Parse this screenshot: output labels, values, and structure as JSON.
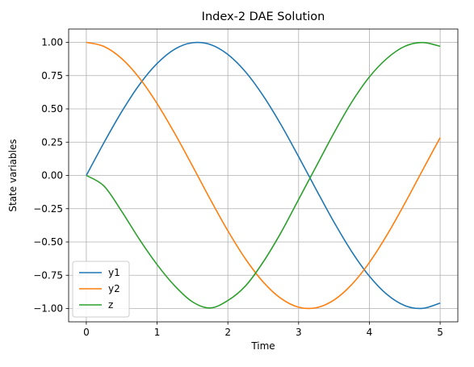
{
  "chart_data": {
    "type": "line",
    "title": "Index-2 DAE Solution",
    "xlabel": "Time",
    "ylabel": "State variables",
    "xlim": [
      -0.25,
      5.25
    ],
    "ylim": [
      -1.1,
      1.1
    ],
    "grid": true,
    "legend_position": "lower-left",
    "xticks": [
      0,
      1,
      2,
      3,
      4,
      5
    ],
    "xtick_labels": [
      "0",
      "1",
      "2",
      "3",
      "4",
      "5"
    ],
    "yticks": [
      -1.0,
      -0.75,
      -0.5,
      -0.25,
      0.0,
      0.25,
      0.5,
      0.75,
      1.0
    ],
    "ytick_labels": [
      "−1.00",
      "−0.75",
      "−0.50",
      "−0.25",
      "0.00",
      "0.25",
      "0.50",
      "0.75",
      "1.00"
    ],
    "x": [
      0.0,
      0.25,
      0.5,
      0.75,
      1.0,
      1.25,
      1.5,
      1.75,
      2.0,
      2.25,
      2.5,
      2.75,
      3.0,
      3.25,
      3.5,
      3.75,
      4.0,
      4.25,
      4.5,
      4.75,
      5.0
    ],
    "series": [
      {
        "name": "y1",
        "color": "#1f77b4",
        "values": [
          0.0,
          0.247,
          0.479,
          0.682,
          0.841,
          0.949,
          0.997,
          0.984,
          0.909,
          0.778,
          0.598,
          0.382,
          0.141,
          -0.108,
          -0.351,
          -0.572,
          -0.757,
          -0.895,
          -0.978,
          -0.999,
          -0.959
        ]
      },
      {
        "name": "y2",
        "color": "#ff7f0e",
        "values": [
          1.0,
          0.969,
          0.878,
          0.732,
          0.54,
          0.315,
          0.071,
          -0.178,
          -0.416,
          -0.628,
          -0.801,
          -0.924,
          -0.99,
          -0.994,
          -0.936,
          -0.82,
          -0.654,
          -0.446,
          -0.211,
          0.038,
          0.284
        ]
      },
      {
        "name": "z",
        "color": "#2ca02c",
        "values": [
          0.0,
          -0.08,
          -0.27,
          -0.48,
          -0.67,
          -0.83,
          -0.95,
          -0.996,
          -0.94,
          -0.83,
          -0.65,
          -0.43,
          -0.18,
          0.07,
          0.32,
          0.55,
          0.74,
          0.88,
          0.97,
          0.999,
          0.97
        ]
      }
    ]
  },
  "colors": {
    "grid": "#b0b0b0",
    "axes": "#000000",
    "legend_border": "#cccccc"
  }
}
